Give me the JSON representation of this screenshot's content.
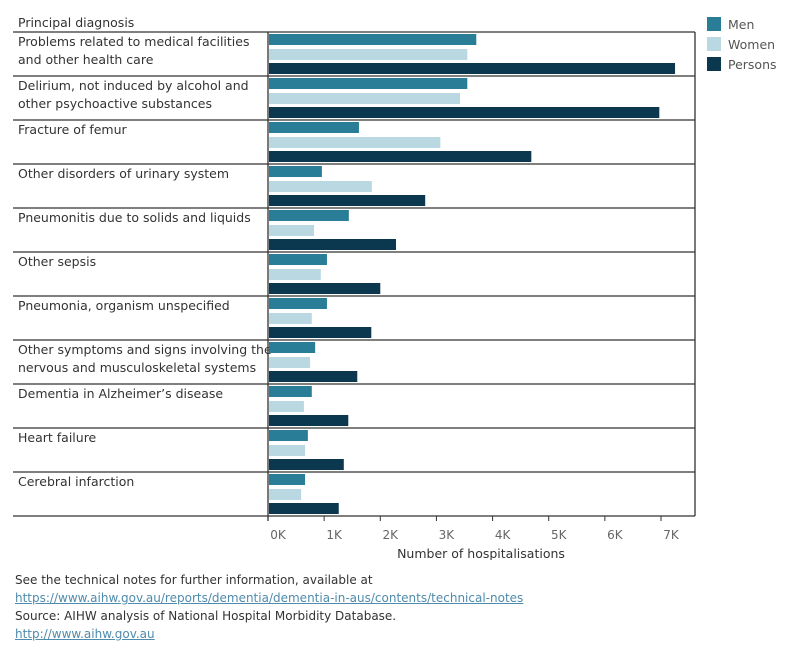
{
  "chart_data": {
    "type": "bar",
    "orientation": "horizontal",
    "row_header": "Principal diagnosis",
    "categories": [
      [
        "Problems related to medical facilities",
        "and other health care"
      ],
      [
        "Delirium, not induced by alcohol and",
        "other psychoactive substances"
      ],
      [
        "Fracture of femur"
      ],
      [
        "Other disorders of urinary system"
      ],
      [
        "Pneumonitis due to solids and liquids"
      ],
      [
        "Other sepsis"
      ],
      [
        "Pneumonia, organism unspecified"
      ],
      [
        "Other symptoms and signs involving the",
        "nervous and musculoskeletal systems"
      ],
      [
        "Dementia in Alzheimer’s disease"
      ],
      [
        "Heart failure"
      ],
      [
        "Cerebral infarction"
      ]
    ],
    "series": [
      {
        "name": "Men",
        "color": "#2a7d97",
        "values": [
          3710,
          3550,
          1620,
          960,
          1440,
          1050,
          1050,
          840,
          780,
          710,
          660
        ]
      },
      {
        "name": "Women",
        "color": "#b9d8e1",
        "values": [
          3550,
          3420,
          3070,
          1850,
          820,
          940,
          780,
          750,
          640,
          660,
          590
        ]
      },
      {
        "name": "Persons",
        "color": "#0b374f",
        "values": [
          7250,
          6970,
          4690,
          2800,
          2280,
          2000,
          1840,
          1590,
          1430,
          1350,
          1260
        ]
      }
    ],
    "xlabel": "Number of hospitalisations",
    "xticks": [
      0,
      1000,
      2000,
      3000,
      4000,
      5000,
      6000,
      7000
    ],
    "xtick_labels": [
      "0K",
      "1K",
      "2K",
      "3K",
      "4K",
      "5K",
      "6K",
      "7K"
    ],
    "xlim": [
      0,
      7600
    ],
    "grid": false,
    "legend_position": "top-right"
  },
  "footer": {
    "note": "See the technical notes for further information, available at",
    "notes_link": "https://www.aihw.gov.au/reports/dementia/dementia-in-aus/contents/technical-notes",
    "source": "Source: AIHW analysis of National Hospital Morbidity Database.",
    "source_link": "http://www.aihw.gov.au"
  }
}
